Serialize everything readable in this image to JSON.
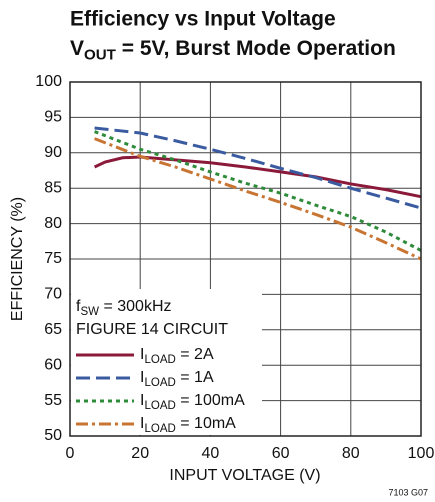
{
  "chart_data": {
    "type": "line",
    "title": "Efficiency vs Input Voltage",
    "subtitle": [
      "V",
      "OUT",
      " = 5V, Burst Mode Operation"
    ],
    "xlabel": "INPUT VOLTAGE (V)",
    "ylabel": "EFFICIENCY (%)",
    "annotations": [
      [
        "f",
        "SW",
        " = 300kHz"
      ],
      [
        "FIGURE 14 CIRCUIT"
      ]
    ],
    "note": "7103 G07",
    "xlim": [
      0,
      100
    ],
    "xticks": [
      0,
      20,
      40,
      60,
      80,
      100
    ],
    "ylim": [
      50,
      100
    ],
    "yticks": [
      50,
      55,
      60,
      65,
      70,
      75,
      80,
      85,
      90,
      95,
      100
    ],
    "grid": true,
    "legend": "lower left",
    "series": [
      {
        "name": [
          "I",
          "LOAD",
          " = 2A"
        ],
        "color": "#8b1a3a",
        "style": "solid",
        "x": [
          7,
          10,
          15,
          20,
          30,
          40,
          50,
          60,
          70,
          80,
          90,
          100
        ],
        "values": [
          88,
          88.7,
          89.3,
          89.4,
          89,
          88.6,
          88,
          87.3,
          86.6,
          85.6,
          84.8,
          83.8
        ]
      },
      {
        "name": [
          "I",
          "LOAD",
          " = 1A"
        ],
        "color": "#3a5ba0",
        "style": "dashed",
        "x": [
          7,
          20,
          30,
          40,
          50,
          60,
          70,
          80,
          90,
          100
        ],
        "values": [
          93.5,
          92.8,
          91.7,
          90.5,
          89.2,
          87.8,
          86.5,
          85,
          83.6,
          82.2
        ]
      },
      {
        "name": [
          "I",
          "LOAD",
          " = 100mA"
        ],
        "color": "#2e8b3a",
        "style": "dotted",
        "x": [
          7,
          20,
          30,
          40,
          50,
          60,
          70,
          80,
          90,
          100
        ],
        "values": [
          93,
          90.5,
          89,
          87.3,
          85.7,
          84.3,
          82.6,
          81,
          78.8,
          76.2
        ]
      },
      {
        "name": [
          "I",
          "LOAD",
          " = 10mA"
        ],
        "color": "#c87533",
        "style": "dashdot",
        "x": [
          7,
          20,
          30,
          40,
          50,
          60,
          70,
          80,
          90,
          100
        ],
        "values": [
          92,
          89.5,
          88,
          86.3,
          84.6,
          83,
          81.3,
          79.5,
          77.3,
          75
        ]
      }
    ]
  }
}
